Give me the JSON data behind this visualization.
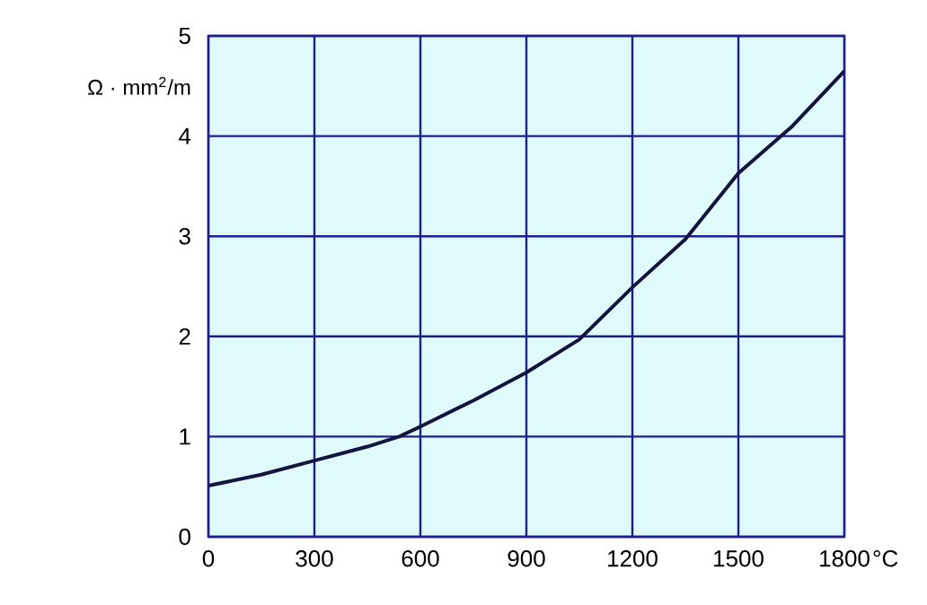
{
  "chart_data": {
    "type": "line",
    "xlabel": "°C",
    "ylabel": "Ω · mm$^{2}$/m",
    "x": [
      0,
      150,
      300,
      450,
      540,
      600,
      750,
      900,
      1050,
      1200,
      1350,
      1500,
      1650,
      1800
    ],
    "series": [
      {
        "color": "#141440",
        "values": [
          0.51,
          0.62,
          0.76,
          0.9,
          1.0,
          1.1,
          1.36,
          1.64,
          1.97,
          2.49,
          2.97,
          3.63,
          4.09,
          4.65
        ]
      }
    ],
    "xlim": [
      0,
      1800
    ],
    "ylim": [
      0,
      5
    ],
    "xticks": [
      0,
      300,
      600,
      900,
      1200,
      1500,
      1800
    ],
    "yticks": [
      0,
      1,
      2,
      3,
      4,
      5
    ],
    "grid": true,
    "line_style": "solid",
    "marker": "none"
  }
}
